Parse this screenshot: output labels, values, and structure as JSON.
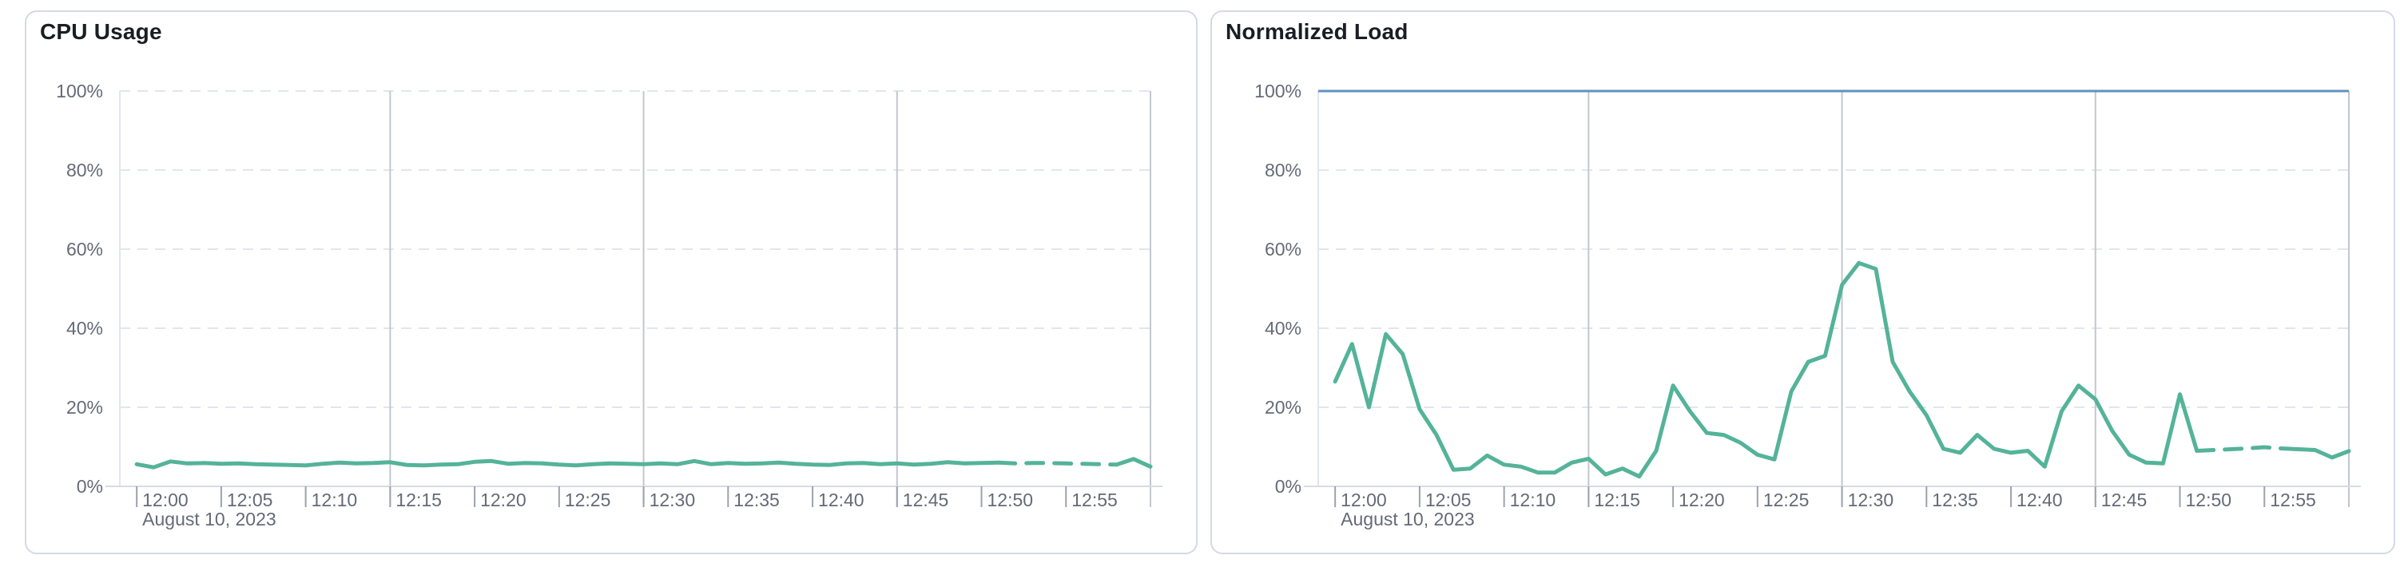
{
  "page": {
    "background_color": "#ffffff",
    "panel_border_color": "#d3dae6"
  },
  "colors": {
    "series_green": "#54B399",
    "reference_blue": "#6092C0",
    "tick_label_gray": "#646a77",
    "title_dark": "#1a1d23",
    "dashed_gridline": "#e1e5ed",
    "vertical_gridline": "#c2c7d0",
    "axis_line": "#d6dbe4",
    "tick_mark": "#9ba3b0"
  },
  "chart_data": [
    {
      "type": "line",
      "title": "CPU Usage",
      "date_label": "August 10, 2023",
      "ylabel": "",
      "xlabel": "",
      "ylim": [
        0,
        100
      ],
      "y_tick_labels": [
        "0%",
        "20%",
        "40%",
        "60%",
        "80%",
        "100%"
      ],
      "h_gridlines": [
        20,
        40,
        60,
        80,
        100
      ],
      "x_tick_labels": [
        "12:00",
        "12:05",
        "12:10",
        "12:15",
        "12:20",
        "12:25",
        "12:30",
        "12:35",
        "12:40",
        "12:45",
        "12:50",
        "12:55"
      ],
      "gridlines_vertical_at": [
        "12:15",
        "12:30",
        "12:45",
        "13:00"
      ],
      "line_color": "#54B399",
      "reference_line": null,
      "dashed_segment": {
        "start_index": 51,
        "end_index": 58
      },
      "x": [
        "12:00",
        "12:01",
        "12:02",
        "12:03",
        "12:04",
        "12:05",
        "12:06",
        "12:07",
        "12:08",
        "12:09",
        "12:10",
        "12:11",
        "12:12",
        "12:13",
        "12:14",
        "12:15",
        "12:16",
        "12:17",
        "12:18",
        "12:19",
        "12:20",
        "12:21",
        "12:22",
        "12:23",
        "12:24",
        "12:25",
        "12:26",
        "12:27",
        "12:28",
        "12:29",
        "12:30",
        "12:31",
        "12:32",
        "12:33",
        "12:34",
        "12:35",
        "12:36",
        "12:37",
        "12:38",
        "12:39",
        "12:40",
        "12:41",
        "12:42",
        "12:43",
        "12:44",
        "12:45",
        "12:46",
        "12:47",
        "12:48",
        "12:49",
        "12:50",
        "12:51",
        "12:52",
        "12:53",
        "12:54",
        "12:55",
        "12:56",
        "12:57",
        "12:58",
        "12:59",
        "13:00"
      ],
      "values": [
        5.6,
        4.8,
        6.3,
        5.8,
        5.9,
        5.7,
        5.8,
        5.6,
        5.5,
        5.4,
        5.3,
        5.7,
        6.0,
        5.8,
        5.9,
        6.1,
        5.4,
        5.3,
        5.5,
        5.6,
        6.2,
        6.4,
        5.7,
        5.9,
        5.8,
        5.5,
        5.3,
        5.6,
        5.8,
        5.7,
        5.6,
        5.8,
        5.6,
        6.4,
        5.6,
        5.9,
        5.7,
        5.8,
        6.0,
        5.7,
        5.5,
        5.4,
        5.8,
        5.9,
        5.6,
        5.8,
        5.5,
        5.7,
        6.1,
        5.8,
        5.9,
        6.0,
        5.8,
        5.9,
        5.9,
        5.8,
        5.7,
        5.6,
        5.5,
        6.9,
        5.0
      ]
    },
    {
      "type": "line",
      "title": "Normalized Load",
      "date_label": "August 10, 2023",
      "ylabel": "",
      "xlabel": "",
      "ylim": [
        0,
        100
      ],
      "y_tick_labels": [
        "0%",
        "20%",
        "40%",
        "60%",
        "80%",
        "100%"
      ],
      "h_gridlines": [
        20,
        40,
        60,
        80
      ],
      "x_tick_labels": [
        "12:00",
        "12:05",
        "12:10",
        "12:15",
        "12:20",
        "12:25",
        "12:30",
        "12:35",
        "12:40",
        "12:45",
        "12:50",
        "12:55"
      ],
      "gridlines_vertical_at": [
        "12:15",
        "12:30",
        "12:45",
        "13:00"
      ],
      "line_color": "#54B399",
      "reference_line": {
        "value": 100,
        "color": "#6092C0"
      },
      "dashed_segment": {
        "start_index": 51,
        "end_index": 57
      },
      "x": [
        "12:00",
        "12:01",
        "12:02",
        "12:03",
        "12:04",
        "12:05",
        "12:06",
        "12:07",
        "12:08",
        "12:09",
        "12:10",
        "12:11",
        "12:12",
        "12:13",
        "12:14",
        "12:15",
        "12:16",
        "12:17",
        "12:18",
        "12:19",
        "12:20",
        "12:21",
        "12:22",
        "12:23",
        "12:24",
        "12:25",
        "12:26",
        "12:27",
        "12:28",
        "12:29",
        "12:30",
        "12:31",
        "12:32",
        "12:33",
        "12:34",
        "12:35",
        "12:36",
        "12:37",
        "12:38",
        "12:39",
        "12:40",
        "12:41",
        "12:42",
        "12:43",
        "12:44",
        "12:45",
        "12:46",
        "12:47",
        "12:48",
        "12:49",
        "12:50",
        "12:51",
        "12:52",
        "12:53",
        "12:54",
        "12:55",
        "12:56",
        "12:57",
        "12:58",
        "12:59",
        "13:00"
      ],
      "values": [
        26.5,
        36,
        20,
        38.5,
        33.5,
        19.5,
        13,
        4.2,
        4.5,
        7.8,
        5.5,
        5,
        3.5,
        3.5,
        6,
        7,
        3,
        4.5,
        2.5,
        9,
        25.5,
        19,
        13.5,
        13,
        11,
        8,
        6.8,
        24,
        31.5,
        33,
        51,
        56.5,
        55,
        31.5,
        24,
        18,
        9.5,
        8.5,
        13,
        9.5,
        8.5,
        9,
        5,
        19,
        25.5,
        22,
        14,
        8,
        6,
        5.8,
        23.3,
        9.0,
        9.2,
        9.4,
        9.6,
        9.9,
        9.6,
        9.4,
        9.2,
        7.3,
        8.9
      ]
    }
  ]
}
